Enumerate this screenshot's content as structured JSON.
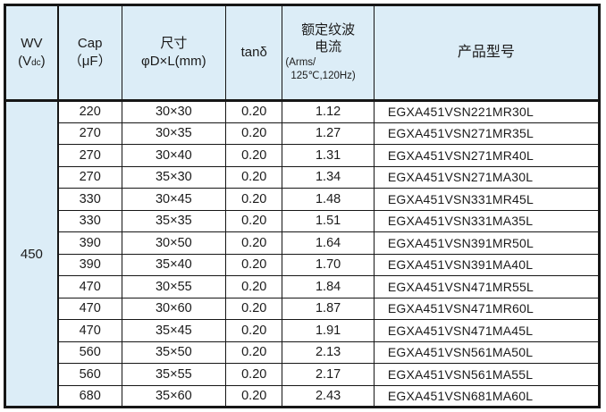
{
  "colors": {
    "border": "#161616",
    "header_bg": "#dcedf7",
    "body_bg": "#ffffff",
    "text": "#1b1b1b"
  },
  "table": {
    "headers": {
      "wv": {
        "line1": "WV",
        "unit_pre": "(V",
        "unit_sub": "dc",
        "unit_post": ")"
      },
      "cap": {
        "line1": "Cap",
        "line2": "（μF）"
      },
      "size": {
        "line1": "尺寸",
        "line2": "φD×L(mm)"
      },
      "tan": "tanδ",
      "ripple": {
        "line1": "额定纹波",
        "line2": "电流",
        "line3": "(Arms/",
        "line4": "125℃,120Hz)"
      },
      "product": "产品型号"
    },
    "wv_value": "450",
    "rows": [
      [
        "220",
        "30×30",
        "0.20",
        "1.12",
        "EGXA451VSN221MR30L"
      ],
      [
        "270",
        "30×35",
        "0.20",
        "1.27",
        "EGXA451VSN271MR35L"
      ],
      [
        "270",
        "30×40",
        "0.20",
        "1.31",
        "EGXA451VSN271MR40L"
      ],
      [
        "270",
        "35×30",
        "0.20",
        "1.34",
        "EGXA451VSN271MA30L"
      ],
      [
        "330",
        "30×45",
        "0.20",
        "1.48",
        "EGXA451VSN331MR45L"
      ],
      [
        "330",
        "35×35",
        "0.20",
        "1.51",
        "EGXA451VSN331MA35L"
      ],
      [
        "390",
        "30×50",
        "0.20",
        "1.64",
        "EGXA451VSN391MR50L"
      ],
      [
        "390",
        "35×40",
        "0.20",
        "1.70",
        "EGXA451VSN391MA40L"
      ],
      [
        "470",
        "30×55",
        "0.20",
        "1.84",
        "EGXA451VSN471MR55L"
      ],
      [
        "470",
        "30×60",
        "0.20",
        "1.87",
        "EGXA451VSN471MR60L"
      ],
      [
        "470",
        "35×45",
        "0.20",
        "1.91",
        "EGXA451VSN471MA45L"
      ],
      [
        "560",
        "35×50",
        "0.20",
        "2.13",
        "EGXA451VSN561MA50L"
      ],
      [
        "560",
        "35×55",
        "0.20",
        "2.17",
        "EGXA451VSN561MA55L"
      ],
      [
        "680",
        "35×60",
        "0.20",
        "2.43",
        "EGXA451VSN681MA60L"
      ]
    ]
  }
}
